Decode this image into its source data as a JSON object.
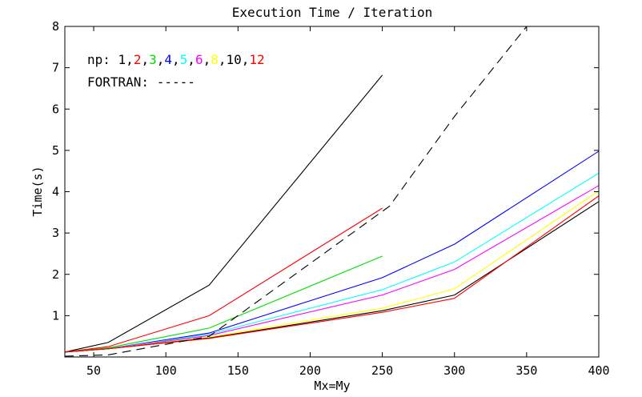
{
  "chart_data": {
    "type": "line",
    "title": "Execution Time / Iteration",
    "xlabel": "Mx=My",
    "ylabel": "Time(s)",
    "xlim": [
      30,
      400
    ],
    "ylim": [
      0,
      8
    ],
    "grid": false,
    "x_ticks": [
      50,
      100,
      150,
      200,
      250,
      300,
      350,
      400
    ],
    "y_ticks": [
      1,
      2,
      3,
      4,
      5,
      6,
      7,
      8
    ],
    "legend": {
      "placement": "top-left",
      "np_prefix": "np:",
      "np_entries": [
        {
          "label": "1",
          "color": "#000000"
        },
        {
          "label": "2",
          "color": "#ff0000"
        },
        {
          "label": "3",
          "color": "#00dd00"
        },
        {
          "label": "4",
          "color": "#0000ff"
        },
        {
          "label": "5",
          "color": "#00ffff"
        },
        {
          "label": "6",
          "color": "#ff00ff"
        },
        {
          "label": "8",
          "color": "#ffff00"
        },
        {
          "label": "10",
          "color": "#000000"
        },
        {
          "label": "12",
          "color": "#ff0000"
        }
      ],
      "fortran_label": "FORTRAN:",
      "fortran_sample": "-----"
    },
    "series": [
      {
        "color": "#000000",
        "dashed": false,
        "x": [
          30,
          60,
          130,
          250
        ],
        "y": [
          0.12,
          0.35,
          1.74,
          6.82
        ]
      },
      {
        "color": "#ff0000",
        "dashed": false,
        "x": [
          30,
          60,
          130,
          250
        ],
        "y": [
          0.12,
          0.25,
          1.0,
          3.6
        ]
      },
      {
        "color": "#00dd00",
        "dashed": false,
        "x": [
          30,
          60,
          130,
          250
        ],
        "y": [
          0.12,
          0.22,
          0.7,
          2.44
        ]
      },
      {
        "color": "#0000ff",
        "dashed": false,
        "x": [
          30,
          60,
          130,
          250,
          300,
          400
        ],
        "y": [
          0.12,
          0.2,
          0.58,
          1.92,
          2.73,
          4.98
        ]
      },
      {
        "color": "#00ffff",
        "dashed": false,
        "x": [
          30,
          60,
          130,
          250,
          300,
          400
        ],
        "y": [
          0.12,
          0.2,
          0.55,
          1.63,
          2.3,
          4.45
        ]
      },
      {
        "color": "#ff00ff",
        "dashed": false,
        "x": [
          30,
          60,
          130,
          250,
          300,
          400
        ],
        "y": [
          0.12,
          0.2,
          0.52,
          1.5,
          2.12,
          4.15
        ]
      },
      {
        "color": "#ffff00",
        "dashed": false,
        "x": [
          30,
          60,
          130,
          250,
          300,
          400
        ],
        "y": [
          0.12,
          0.2,
          0.48,
          1.18,
          1.65,
          4.02
        ]
      },
      {
        "color": "#000000",
        "dashed": false,
        "x": [
          30,
          60,
          130,
          250,
          300,
          400
        ],
        "y": [
          0.12,
          0.2,
          0.46,
          1.12,
          1.5,
          3.76
        ]
      },
      {
        "color": "#ff0000",
        "dashed": false,
        "x": [
          30,
          60,
          130,
          250,
          300,
          400
        ],
        "y": [
          0.12,
          0.2,
          0.45,
          1.08,
          1.42,
          3.9
        ]
      },
      {
        "name": "FORTRAN",
        "color": "#000000",
        "dashed": true,
        "x": [
          30,
          60,
          130,
          255,
          300,
          350
        ],
        "y": [
          0.02,
          0.05,
          0.5,
          3.65,
          5.82,
          8.0
        ]
      }
    ]
  }
}
